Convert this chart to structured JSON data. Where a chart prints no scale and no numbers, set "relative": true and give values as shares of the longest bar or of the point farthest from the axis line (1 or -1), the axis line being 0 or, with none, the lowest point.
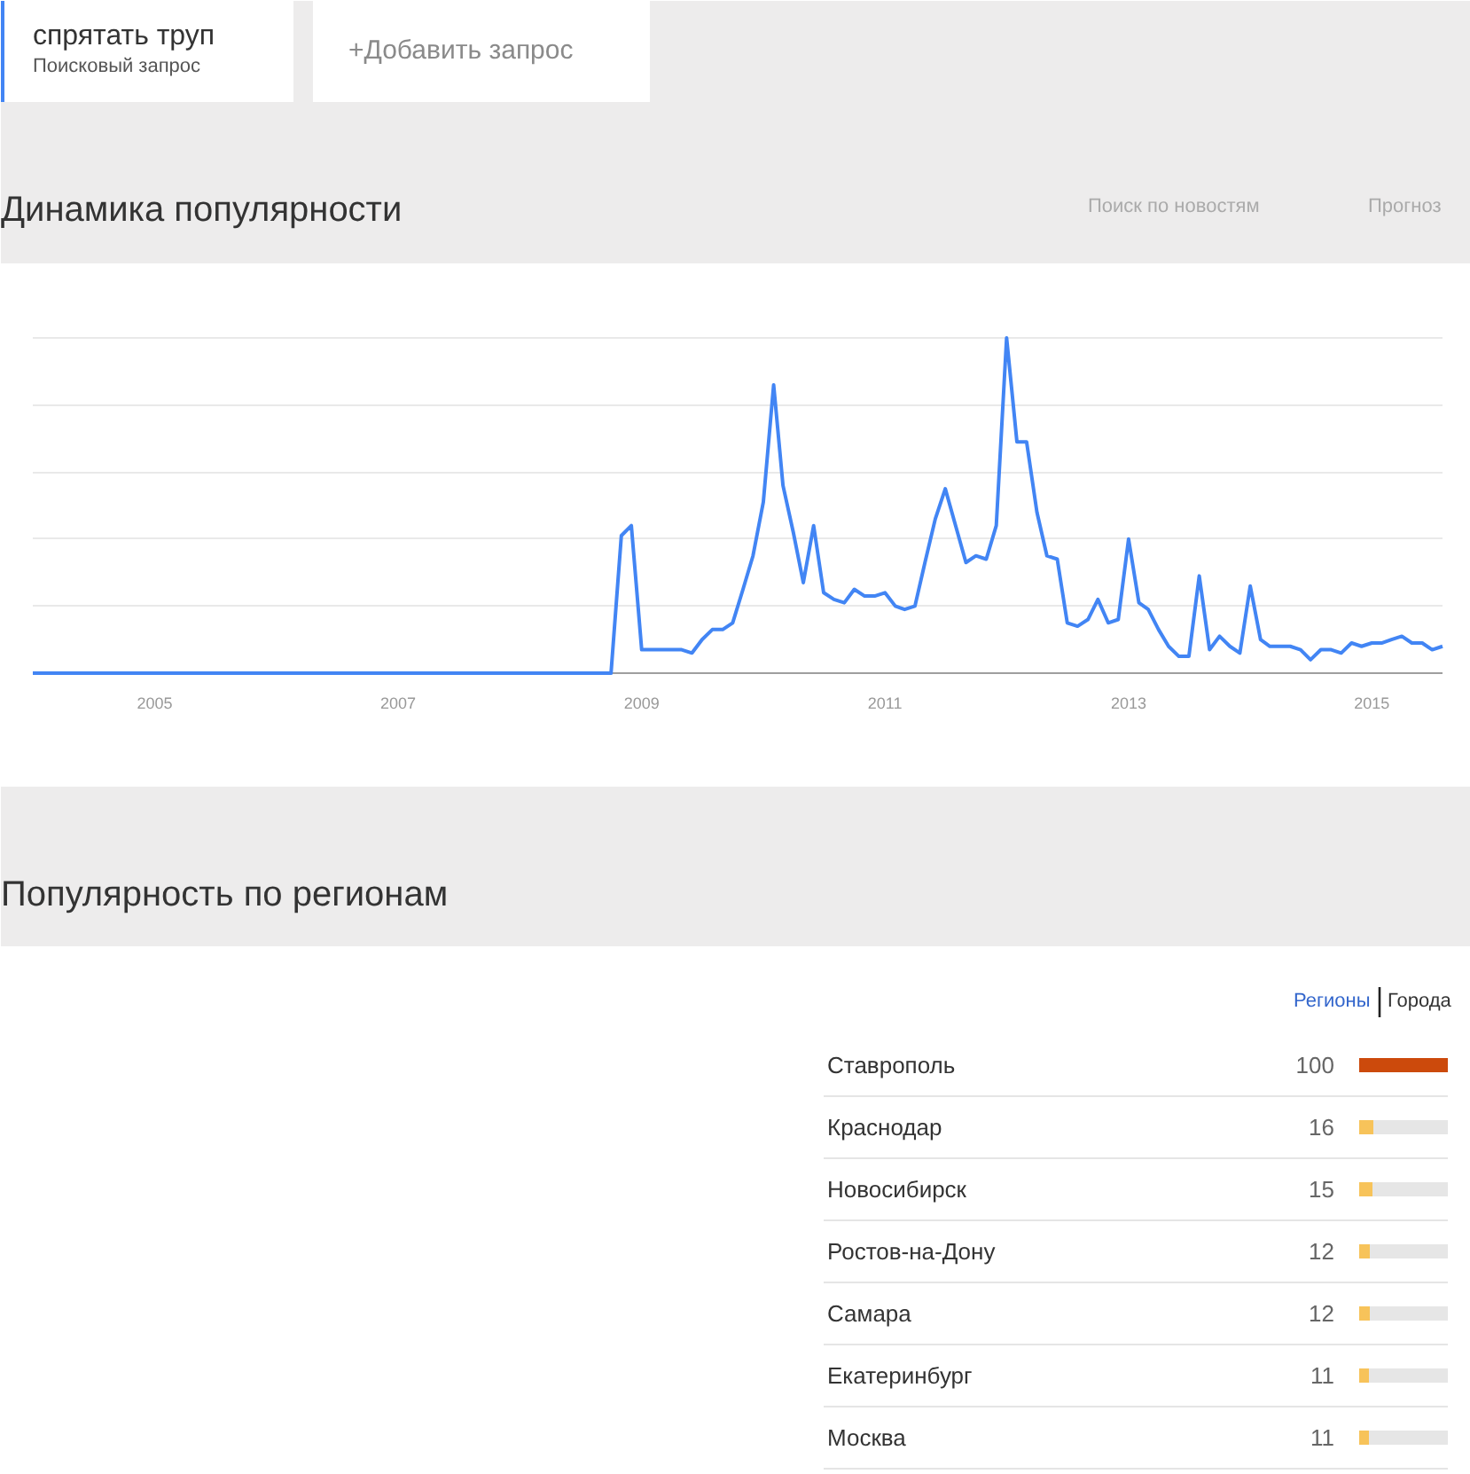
{
  "chart_data": [
    {
      "type": "line",
      "title": "Динамика популярности",
      "annotations": [
        "спрятать труп",
        "Поисковый запрос",
        "+Добавить запрос",
        "Поиск по новостям",
        "Прогноз"
      ],
      "relative": true,
      "grid": "y",
      "tick_labels": "x",
      "x": [
        "2004-01",
        "2004-02",
        "2004-03",
        "2004-04",
        "2004-05",
        "2004-06",
        "2004-07",
        "2004-08",
        "2004-09",
        "2004-10",
        "2004-11",
        "2004-12",
        "2005-01",
        "2005-02",
        "2005-03",
        "2005-04",
        "2005-05",
        "2005-06",
        "2005-07",
        "2005-08",
        "2005-09",
        "2005-10",
        "2005-11",
        "2005-12",
        "2006-01",
        "2006-02",
        "2006-03",
        "2006-04",
        "2006-05",
        "2006-06",
        "2006-07",
        "2006-08",
        "2006-09",
        "2006-10",
        "2006-11",
        "2006-12",
        "2007-01",
        "2007-02",
        "2007-03",
        "2007-04",
        "2007-05",
        "2007-06",
        "2007-07",
        "2007-08",
        "2007-09",
        "2007-10",
        "2007-11",
        "2007-12",
        "2008-01",
        "2008-02",
        "2008-03",
        "2008-04",
        "2008-05",
        "2008-06",
        "2008-07",
        "2008-08",
        "2008-09",
        "2008-10",
        "2008-11",
        "2008-12",
        "2009-01",
        "2009-02",
        "2009-03",
        "2009-04",
        "2009-05",
        "2009-06",
        "2009-07",
        "2009-08",
        "2009-09",
        "2009-10",
        "2009-11",
        "2009-12",
        "2010-01",
        "2010-02",
        "2010-03",
        "2010-04",
        "2010-05",
        "2010-06",
        "2010-07",
        "2010-08",
        "2010-09",
        "2010-10",
        "2010-11",
        "2010-12",
        "2011-01",
        "2011-02",
        "2011-03",
        "2011-04",
        "2011-05",
        "2011-06",
        "2011-07",
        "2011-08",
        "2011-09",
        "2011-10",
        "2011-11",
        "2011-12",
        "2012-01",
        "2012-02",
        "2012-03",
        "2012-04",
        "2012-05",
        "2012-06",
        "2012-07",
        "2012-08",
        "2012-09",
        "2012-10",
        "2012-11",
        "2012-12",
        "2013-01",
        "2013-02",
        "2013-03",
        "2013-04",
        "2013-05",
        "2013-06",
        "2013-07",
        "2013-08",
        "2013-09",
        "2013-10",
        "2013-11",
        "2013-12",
        "2014-01",
        "2014-02",
        "2014-03",
        "2014-04",
        "2014-05",
        "2014-06",
        "2014-07",
        "2014-08",
        "2014-09",
        "2014-10",
        "2014-11",
        "2014-12",
        "2015-01",
        "2015-02",
        "2015-03",
        "2015-04",
        "2015-05",
        "2015-06",
        "2015-07",
        "2015-08"
      ],
      "series": [
        {
          "color": "#4285f4",
          "values": [
            0,
            0,
            0,
            0,
            0,
            0,
            0,
            0,
            0,
            0,
            0,
            0,
            0,
            0,
            0,
            0,
            0,
            0,
            0,
            0,
            0,
            0,
            0,
            0,
            0,
            0,
            0,
            0,
            0,
            0,
            0,
            0,
            0,
            0,
            0,
            0,
            0,
            0,
            0,
            0,
            0,
            0,
            0,
            0,
            0,
            0,
            0,
            0,
            0,
            0,
            0,
            0,
            0,
            0,
            0,
            0,
            0,
            0,
            0.41,
            0.44,
            0.07,
            0.07,
            0.07,
            0.07,
            0.07,
            0.06,
            0.1,
            0.13,
            0.13,
            0.15,
            0.25,
            0.35,
            0.51,
            0.86,
            0.56,
            0.42,
            0.27,
            0.44,
            0.24,
            0.22,
            0.21,
            0.25,
            0.23,
            0.23,
            0.24,
            0.2,
            0.19,
            0.2,
            0.33,
            0.46,
            0.55,
            0.44,
            0.33,
            0.35,
            0.34,
            0.44,
            1,
            0.69,
            0.69,
            0.48,
            0.35,
            0.34,
            0.15,
            0.14,
            0.16,
            0.22,
            0.15,
            0.16,
            0.4,
            0.21,
            0.19,
            0.13,
            0.08,
            0.05,
            0.05,
            0.29,
            0.07,
            0.11,
            0.08,
            0.06,
            0.26,
            0.1,
            0.08,
            0.08,
            0.08,
            0.07,
            0.04,
            0.07,
            0.07,
            0.06,
            0.09,
            0.08,
            0.09,
            0.09,
            0.1,
            0.11,
            0.09,
            0.09,
            0.07,
            0.08
          ]
        }
      ],
      "xlim": [
        "2004-01",
        "2015-08"
      ],
      "xticks": [
        "2005",
        "2007",
        "2009",
        "2011",
        "2013",
        "2015"
      ]
    },
    {
      "type": "bar",
      "annotations": [
        "Популярность по регионам",
        "Регионы",
        "Города"
      ],
      "orientation": "horizontal",
      "stacked": true,
      "grid": "y",
      "tick_labels": "y",
      "categories": [
        "Ставрополь",
        "Краснодар",
        "Новосибирск",
        "Ростов-на-Дону",
        "Самара",
        "Екатеринбург",
        "Москва"
      ],
      "series": [
        {
          "colors": [
            "#cc4a0c",
            "#f7c35a",
            "#f7c35a",
            "#f7c35a",
            "#f7c35a",
            "#f7c35a",
            "#f7c35a"
          ],
          "values": [
            100,
            16,
            15,
            12,
            12,
            11,
            11
          ],
          "value_labels": [
            "100",
            "16",
            "15",
            "12",
            "12",
            "11",
            "11"
          ]
        },
        {
          "color": "#e6e6e6",
          "values": [
            0,
            84,
            85,
            88,
            88,
            89,
            89
          ]
        }
      ]
    }
  ]
}
